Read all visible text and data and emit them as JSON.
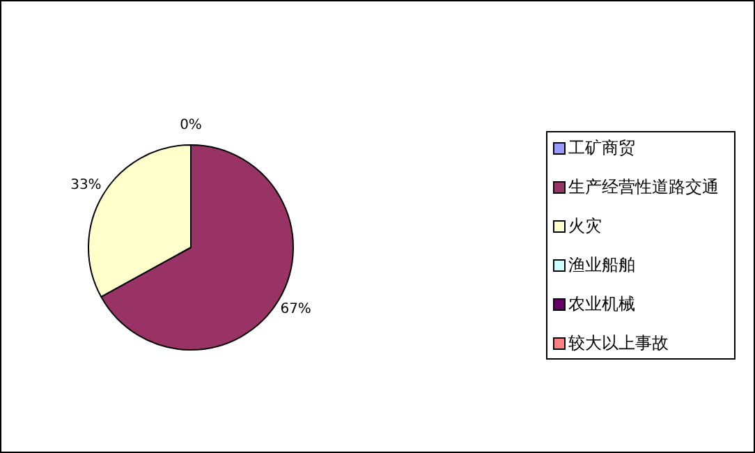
{
  "chart_data": {
    "type": "pie",
    "categories": [
      "工矿商贸",
      "生产经营性道路交通",
      "火灾",
      "渔业船舶",
      "农业机械",
      "较大以上事故"
    ],
    "values": [
      0,
      67,
      33,
      0,
      0,
      0
    ],
    "colors": [
      "#9999ff",
      "#993366",
      "#ffffcc",
      "#ccffff",
      "#660066",
      "#ff8080"
    ],
    "value_labels": [
      "0%",
      "67%",
      "33%",
      null,
      null,
      null
    ],
    "legend": "right"
  }
}
